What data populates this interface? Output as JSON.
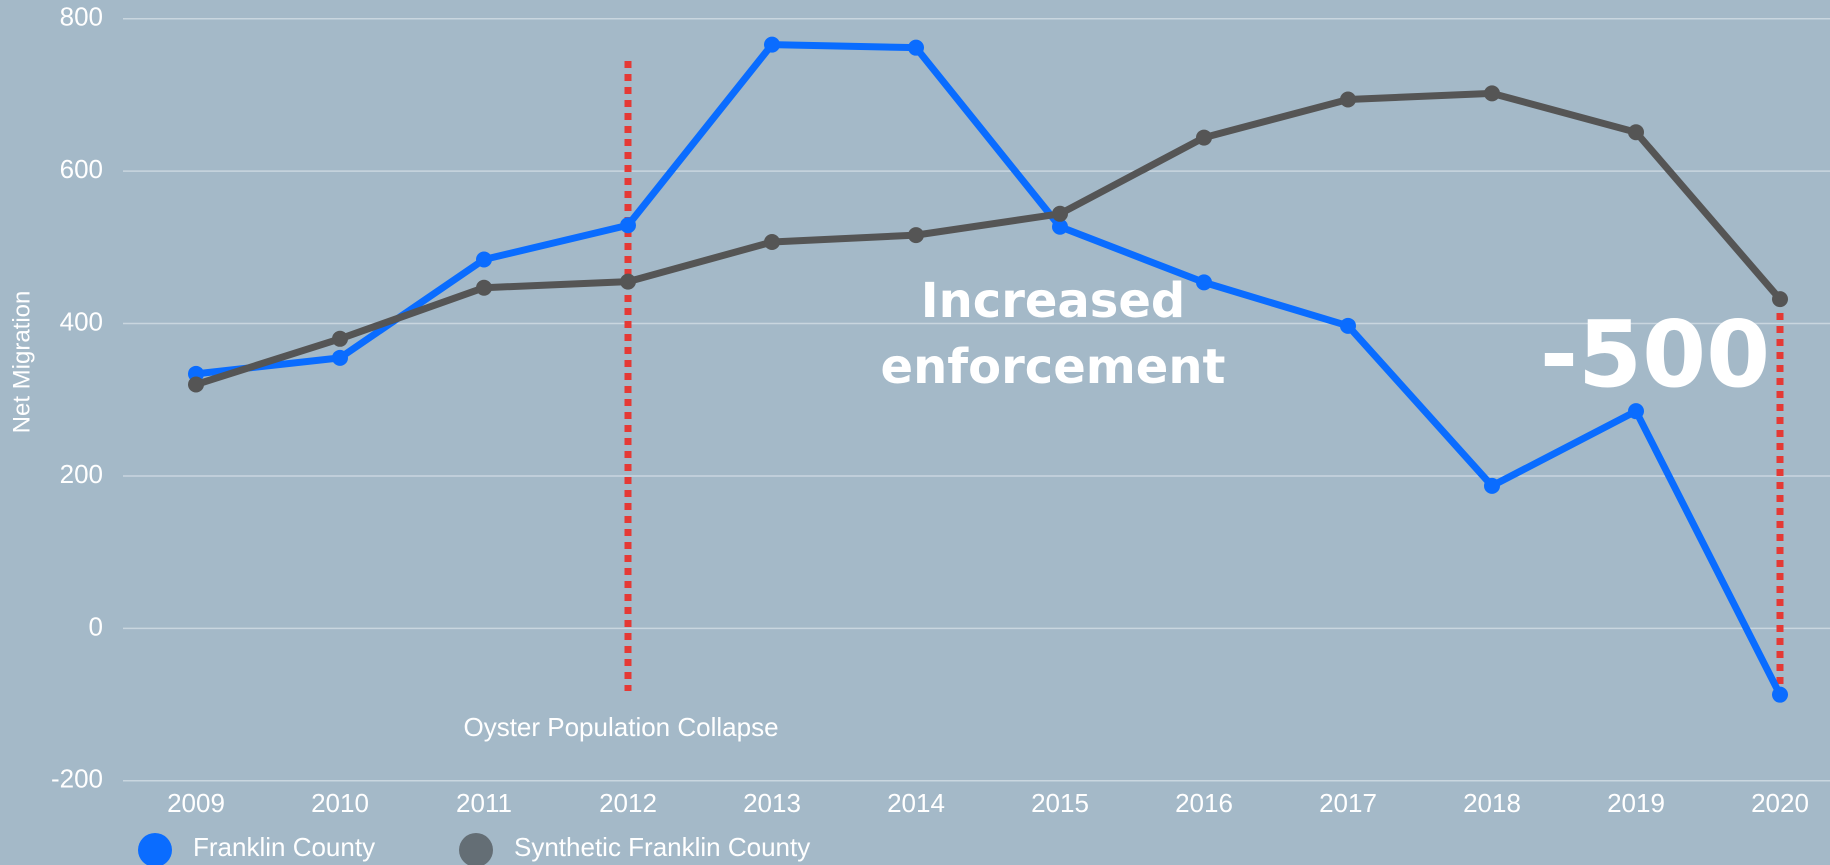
{
  "chart_data": {
    "type": "line",
    "y_label": "Net Migration",
    "categories": [
      "2009",
      "2010",
      "2011",
      "2012",
      "2013",
      "2014",
      "2015",
      "2016",
      "2017",
      "2018",
      "2019",
      "2020"
    ],
    "series": [
      {
        "name": "Franklin County",
        "color": "#0a6cff",
        "values": [
          334,
          355,
          484,
          529,
          766,
          762,
          527,
          454,
          397,
          187,
          285,
          -87
        ]
      },
      {
        "name": "Synthetic Franklin County",
        "color": "#555555",
        "values": [
          320,
          380,
          447,
          455,
          507,
          516,
          544,
          644,
          694,
          702,
          651,
          432
        ]
      }
    ],
    "ylim": [
      -200,
      800
    ],
    "yticks": [
      -200,
      0,
      200,
      400,
      600,
      800
    ],
    "grid": true,
    "annotations": [
      "Oyster Population Collapse",
      "Increased enforcement",
      "-500"
    ]
  }
}
